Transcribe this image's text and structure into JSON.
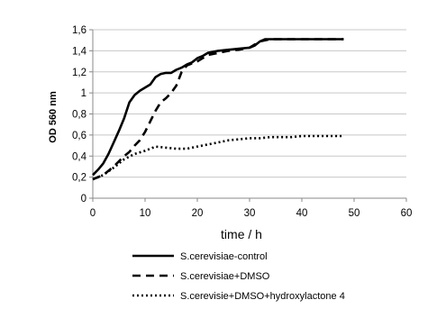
{
  "chart_data": {
    "type": "line",
    "xlabel": "time / h",
    "ylabel": "OD 560 nm",
    "xlim": [
      0,
      60
    ],
    "ylim": [
      0,
      1.6
    ],
    "x_ticks": [
      "0",
      "10",
      "20",
      "30",
      "40",
      "50",
      "60"
    ],
    "y_ticks": [
      "0",
      "0,2",
      "0,4",
      "0,6",
      "0,8",
      "1",
      "1,2",
      "1,4",
      "1,6"
    ],
    "grid": "horizontal",
    "legend_position": "bottom",
    "series": [
      {
        "name": "S.cerevisiae-control",
        "style": "solid",
        "color": "#000000",
        "x": [
          0,
          1,
          2,
          3,
          4,
          5,
          6,
          7,
          8,
          9,
          10,
          11,
          12,
          13,
          14,
          15,
          16,
          17,
          18,
          19,
          20,
          21,
          22,
          24,
          26,
          28,
          30,
          31,
          32,
          33,
          34,
          36,
          40,
          44,
          48
        ],
        "y": [
          0.22,
          0.27,
          0.33,
          0.42,
          0.53,
          0.64,
          0.76,
          0.91,
          0.98,
          1.02,
          1.05,
          1.08,
          1.15,
          1.18,
          1.19,
          1.19,
          1.22,
          1.24,
          1.27,
          1.29,
          1.33,
          1.35,
          1.38,
          1.4,
          1.41,
          1.42,
          1.43,
          1.45,
          1.49,
          1.51,
          1.51,
          1.51,
          1.51,
          1.51,
          1.51
        ]
      },
      {
        "name": "S.cerevisiae+DMSO",
        "style": "dashed",
        "color": "#000000",
        "x": [
          0,
          2,
          4,
          6,
          7,
          8,
          9,
          10,
          11,
          12,
          13,
          14,
          15,
          16,
          17,
          18,
          19,
          20,
          21,
          22,
          24,
          26,
          28,
          30,
          32,
          34,
          36,
          40,
          44,
          48
        ],
        "y": [
          0.18,
          0.22,
          0.3,
          0.4,
          0.44,
          0.5,
          0.55,
          0.63,
          0.73,
          0.83,
          0.91,
          0.95,
          1.0,
          1.07,
          1.2,
          1.26,
          1.28,
          1.3,
          1.33,
          1.36,
          1.38,
          1.4,
          1.41,
          1.43,
          1.49,
          1.51,
          1.51,
          1.51,
          1.51,
          1.51
        ]
      },
      {
        "name": "S.cerevisie+DMSO+hydroxylactone 4",
        "style": "dotted",
        "color": "#000000",
        "x": [
          0,
          2,
          4,
          6,
          8,
          10,
          12,
          14,
          16,
          18,
          20,
          22,
          24,
          26,
          28,
          30,
          32,
          34,
          36,
          38,
          40,
          42,
          44,
          46,
          48
        ],
        "y": [
          0.18,
          0.22,
          0.29,
          0.37,
          0.42,
          0.45,
          0.49,
          0.48,
          0.47,
          0.47,
          0.49,
          0.51,
          0.53,
          0.55,
          0.56,
          0.57,
          0.57,
          0.58,
          0.58,
          0.58,
          0.59,
          0.59,
          0.59,
          0.59,
          0.59
        ]
      }
    ]
  }
}
